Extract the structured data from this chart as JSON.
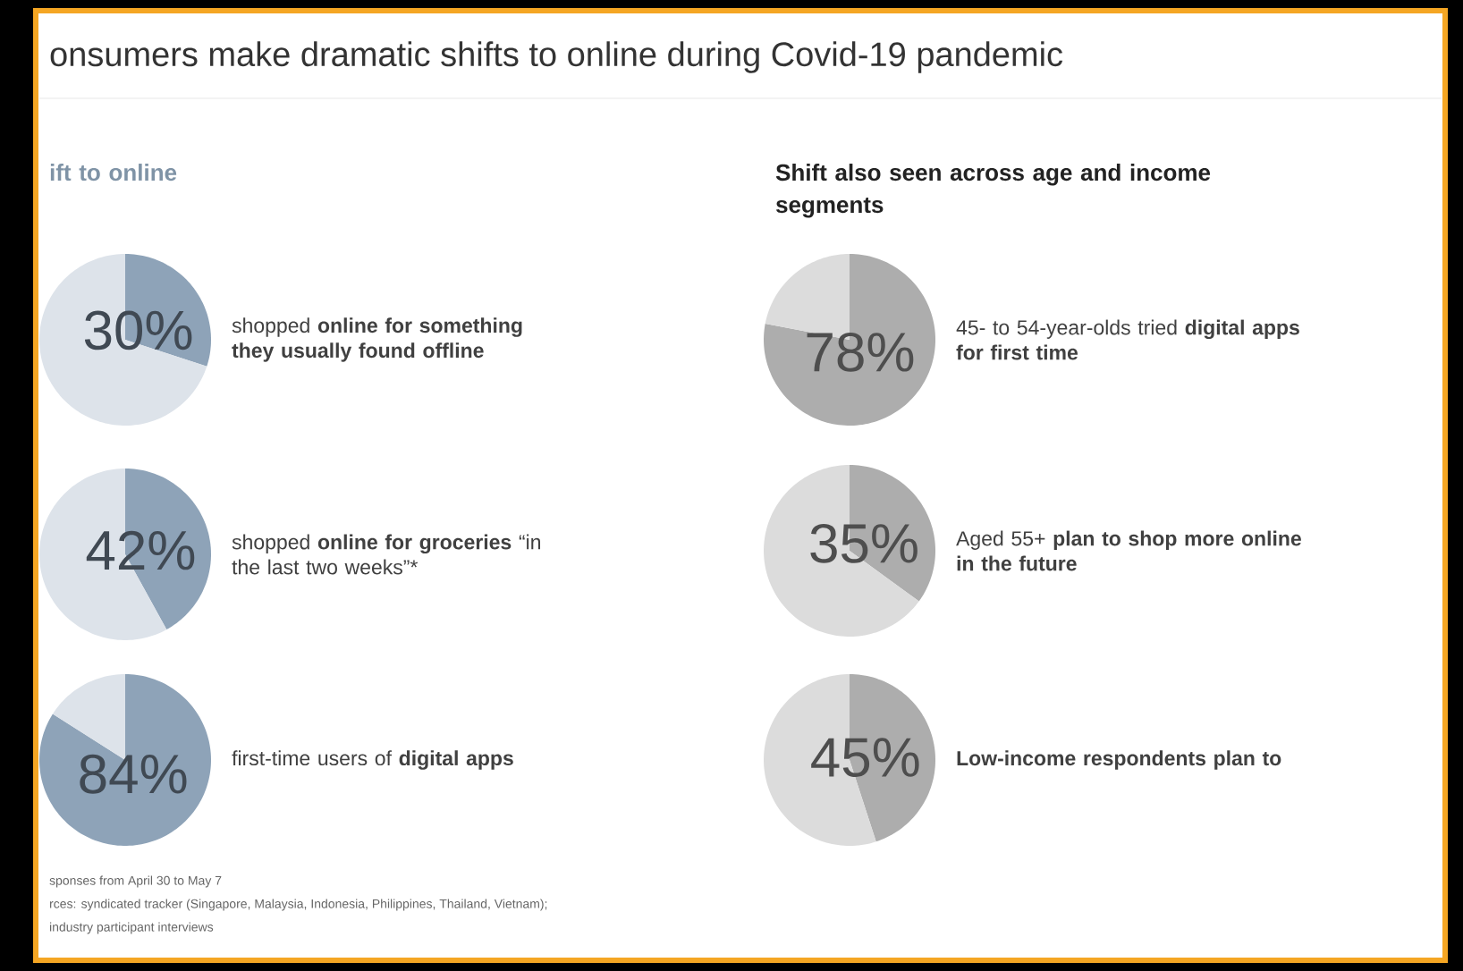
{
  "chart_data": [
    {
      "type": "pie",
      "title": "onsumers make dramatic shifts to online during Covid-19 pandemic",
      "subtitle": "ift to online",
      "categories": [
        null,
        null
      ],
      "values": [
        30,
        70
      ],
      "colors": [
        "#8ea3b8",
        "#dde3ea"
      ],
      "value_labels": [
        "30%",
        null
      ],
      "annotations": [
        "shopped **online for something they usually found offline**"
      ]
    },
    {
      "type": "pie",
      "categories": [
        null,
        null
      ],
      "values": [
        42,
        58
      ],
      "colors": [
        "#8ea3b8",
        "#dde3ea"
      ],
      "value_labels": [
        "42%",
        null
      ],
      "annotations": [
        "shopped **online for groceries** “in the last two weeks”*"
      ]
    },
    {
      "type": "pie",
      "categories": [
        null,
        null
      ],
      "values": [
        84,
        16
      ],
      "colors": [
        "#8ea3b8",
        "#dde3ea"
      ],
      "value_labels": [
        "84%",
        null
      ],
      "annotations": [
        "first-time users of **digital apps**",
        "sponses from April 30 to May 7",
        "rces: syndicated tracker (Singapore, Malaysia, Indonesia, Philippines, Thailand, Vietnam);",
        "industry participant interviews"
      ]
    },
    {
      "type": "pie",
      "subtitle": "Shift also seen across age and income segments",
      "categories": [
        null,
        null
      ],
      "values": [
        78,
        22
      ],
      "colors": [
        "#adadad",
        "#dcdcdc"
      ],
      "value_labels": [
        "78%",
        null
      ],
      "annotations": [
        "45- to 54-year-olds tried **digital apps for first time**"
      ]
    },
    {
      "type": "pie",
      "categories": [
        null,
        null
      ],
      "values": [
        35,
        65
      ],
      "colors": [
        "#adadad",
        "#dcdcdc"
      ],
      "value_labels": [
        "35%",
        null
      ],
      "annotations": [
        "Aged 55+ **plan to shop more online in the future**"
      ]
    },
    {
      "type": "pie",
      "categories": [
        null,
        null
      ],
      "values": [
        45,
        55
      ],
      "colors": [
        "#adadad",
        "#dcdcdc"
      ],
      "value_labels": [
        "45%",
        null
      ],
      "annotations": [
        "**Low-income respondents plan to**"
      ]
    }
  ]
}
